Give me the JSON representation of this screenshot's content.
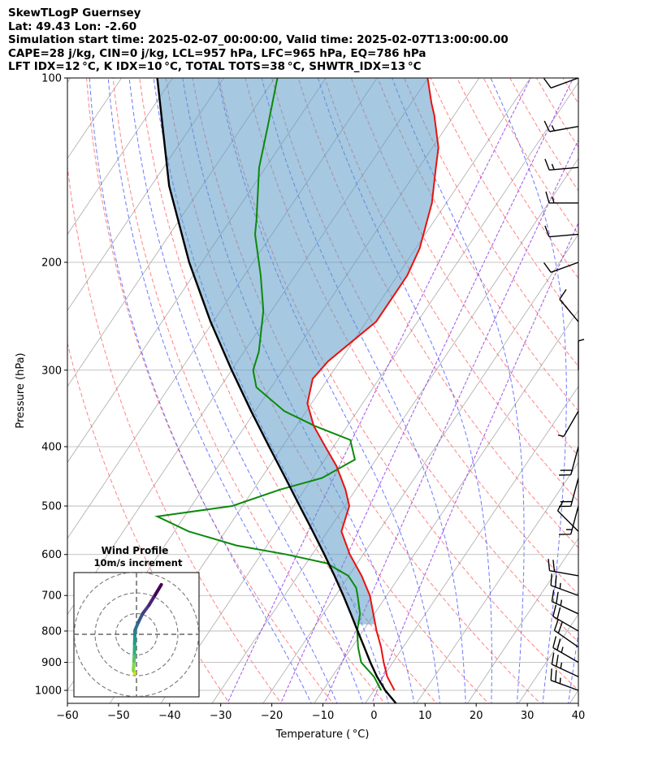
{
  "header": {
    "line1": "SkewTLogP Guernsey",
    "line2": "Lat: 49.43   Lon: -2.60",
    "line3": "Simulation start time: 2025-02-07_00:00:00, Valid time: 2025-02-07T13:00:00.00",
    "line4": "CAPE=28 j/kg, CIN=0 j/kg, LCL=957 hPa, LFC=965 hPa, EQ=786 hPa",
    "line5": "LFT IDX=12 °C, K IDX=10 °C, TOTAL TOTS=38 °C, SHWTR_IDX=13 °C"
  },
  "colors": {
    "temperature": "#e8120f",
    "dewpoint": "#0a8a0a",
    "parcel": "#000000",
    "cape_fill": "#5c9ac6",
    "dry_adiabat": "#ff5a5a",
    "moist_adiabat": "#3a4cff",
    "mixing_ratio": "#8a2be2",
    "isotherm": "#aaaaaa"
  },
  "chart_data": {
    "type": "skew-t log-p",
    "xlabel": "Temperature ( °C)",
    "ylabel": "Pressure (hPa)",
    "xlim": [
      -60,
      40
    ],
    "ylim": [
      1050,
      100
    ],
    "y_scale": "log",
    "grid": true,
    "x_ticks": [
      "−60",
      "−50",
      "−40",
      "−30",
      "−20",
      "−10",
      "0",
      "10",
      "20",
      "30",
      "40"
    ],
    "y_ticks": [
      "1000",
      "900",
      "800",
      "700",
      "600",
      "500",
      "400",
      "300",
      "200",
      "100"
    ],
    "temperature_profile": [
      {
        "p": 1000,
        "t": 4.0
      },
      {
        "p": 950,
        "t": 0.8
      },
      {
        "p": 900,
        "t": -1.8
      },
      {
        "p": 850,
        "t": -4.3
      },
      {
        "p": 800,
        "t": -7.3
      },
      {
        "p": 750,
        "t": -10.2
      },
      {
        "p": 700,
        "t": -13.3
      },
      {
        "p": 650,
        "t": -17.5
      },
      {
        "p": 600,
        "t": -22.6
      },
      {
        "p": 550,
        "t": -27.3
      },
      {
        "p": 500,
        "t": -29.1
      },
      {
        "p": 470,
        "t": -32.0
      },
      {
        "p": 430,
        "t": -36.9
      },
      {
        "p": 400,
        "t": -41.6
      },
      {
        "p": 370,
        "t": -46.6
      },
      {
        "p": 340,
        "t": -50.8
      },
      {
        "p": 310,
        "t": -53.0
      },
      {
        "p": 290,
        "t": -52.3
      },
      {
        "p": 270,
        "t": -50.3
      },
      {
        "p": 250,
        "t": -48.1
      },
      {
        "p": 230,
        "t": -48.1
      },
      {
        "p": 210,
        "t": -48.1
      },
      {
        "p": 190,
        "t": -49.2
      },
      {
        "p": 160,
        "t": -52.8
      },
      {
        "p": 140,
        "t": -56.7
      },
      {
        "p": 130,
        "t": -58.8
      },
      {
        "p": 115,
        "t": -63.9
      },
      {
        "p": 110,
        "t": -66.0
      },
      {
        "p": 100,
        "t": -70.1
      }
    ],
    "dewpoint_profile": [
      {
        "p": 1000,
        "t": 1.4
      },
      {
        "p": 950,
        "t": -1.8
      },
      {
        "p": 900,
        "t": -6.2
      },
      {
        "p": 850,
        "t": -8.8
      },
      {
        "p": 800,
        "t": -11.1
      },
      {
        "p": 750,
        "t": -12.8
      },
      {
        "p": 700,
        "t": -15.7
      },
      {
        "p": 680,
        "t": -17.0
      },
      {
        "p": 650,
        "t": -20.1
      },
      {
        "p": 620,
        "t": -26.0
      },
      {
        "p": 600,
        "t": -35.0
      },
      {
        "p": 580,
        "t": -46.0
      },
      {
        "p": 550,
        "t": -57.2
      },
      {
        "p": 520,
        "t": -65.3
      },
      {
        "p": 500,
        "t": -52.0
      },
      {
        "p": 470,
        "t": -44.8
      },
      {
        "p": 450,
        "t": -38.1
      },
      {
        "p": 420,
        "t": -34.1
      },
      {
        "p": 390,
        "t": -37.6
      },
      {
        "p": 370,
        "t": -46.4
      },
      {
        "p": 350,
        "t": -54.3
      },
      {
        "p": 320,
        "t": -62.9
      },
      {
        "p": 300,
        "t": -65.8
      },
      {
        "p": 280,
        "t": -67.1
      },
      {
        "p": 240,
        "t": -71.6
      },
      {
        "p": 210,
        "t": -76.8
      },
      {
        "p": 180,
        "t": -83.3
      },
      {
        "p": 170,
        "t": -85.0
      },
      {
        "p": 140,
        "t": -91.3
      },
      {
        "p": 120,
        "t": -95.0
      },
      {
        "p": 100,
        "t": -99.5
      }
    ],
    "parcel_profile": [
      {
        "p": 1050,
        "t": 6.0
      },
      {
        "p": 1000,
        "t": 2.2
      },
      {
        "p": 950,
        "t": -1.2
      },
      {
        "p": 900,
        "t": -4.4
      },
      {
        "p": 850,
        "t": -7.6
      },
      {
        "p": 800,
        "t": -11.0
      },
      {
        "p": 750,
        "t": -14.6
      },
      {
        "p": 700,
        "t": -18.5
      },
      {
        "p": 650,
        "t": -22.8
      },
      {
        "p": 600,
        "t": -27.6
      },
      {
        "p": 550,
        "t": -32.9
      },
      {
        "p": 500,
        "t": -38.8
      },
      {
        "p": 450,
        "t": -45.3
      },
      {
        "p": 400,
        "t": -52.6
      },
      {
        "p": 350,
        "t": -60.8
      },
      {
        "p": 300,
        "t": -70.0
      },
      {
        "p": 250,
        "t": -80.5
      },
      {
        "p": 200,
        "t": -92.5
      },
      {
        "p": 150,
        "t": -106.5
      },
      {
        "p": 100,
        "t": -123.0
      }
    ],
    "wind_barbs": [
      {
        "p": 100,
        "speed_kt": 10,
        "dir_deg": 250
      },
      {
        "p": 120,
        "speed_kt": 15,
        "dir_deg": 260
      },
      {
        "p": 140,
        "speed_kt": 15,
        "dir_deg": 265
      },
      {
        "p": 160,
        "speed_kt": 15,
        "dir_deg": 270
      },
      {
        "p": 180,
        "speed_kt": 10,
        "dir_deg": 265
      },
      {
        "p": 200,
        "speed_kt": 10,
        "dir_deg": 250
      },
      {
        "p": 250,
        "speed_kt": 10,
        "dir_deg": 320
      },
      {
        "p": 300,
        "speed_kt": 5,
        "dir_deg": 360
      },
      {
        "p": 350,
        "speed_kt": 5,
        "dir_deg": 210
      },
      {
        "p": 400,
        "speed_kt": 20,
        "dir_deg": 195
      },
      {
        "p": 450,
        "speed_kt": 20,
        "dir_deg": 195
      },
      {
        "p": 500,
        "speed_kt": 15,
        "dir_deg": 195
      },
      {
        "p": 550,
        "speed_kt": 10,
        "dir_deg": 315
      },
      {
        "p": 650,
        "speed_kt": 20,
        "dir_deg": 280
      },
      {
        "p": 700,
        "speed_kt": 25,
        "dir_deg": 290
      },
      {
        "p": 750,
        "speed_kt": 25,
        "dir_deg": 295
      },
      {
        "p": 800,
        "speed_kt": 20,
        "dir_deg": 300
      },
      {
        "p": 850,
        "speed_kt": 20,
        "dir_deg": 305
      },
      {
        "p": 900,
        "speed_kt": 25,
        "dir_deg": 300
      },
      {
        "p": 950,
        "speed_kt": 25,
        "dir_deg": 295
      },
      {
        "p": 1000,
        "speed_kt": 25,
        "dir_deg": 290
      }
    ],
    "hodograph": {
      "title": "Wind Profile",
      "subtitle": "10m/s increment",
      "u": [
        -1.0,
        -0.8,
        -1.5,
        -1.2,
        -1.0,
        -0.9,
        -0.8,
        -0.8,
        -0.5,
        1.0,
        3.0,
        6.0,
        9.0,
        12.0
      ],
      "v": [
        -19.0,
        -18.5,
        -17.5,
        -13.0,
        -9.0,
        -4.5,
        0.0,
        1.5,
        2.5,
        6.0,
        10.0,
        14.0,
        19.0,
        24.0
      ]
    }
  }
}
